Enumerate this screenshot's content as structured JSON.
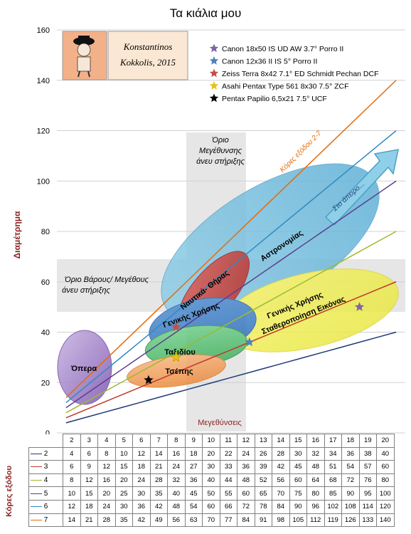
{
  "chart_data": {
    "type": "line",
    "title": "Τα κιάλια μου",
    "xlabel": "Μεγεθύνσεις",
    "ylabel": "Διαμέτρημα",
    "table_ylabel": "Κόρες εξόδου",
    "x": [
      2,
      3,
      4,
      5,
      6,
      7,
      8,
      9,
      10,
      11,
      12,
      13,
      14,
      15,
      16,
      17,
      18,
      19,
      20
    ],
    "xlim": [
      1.5,
      20.5
    ],
    "ylim": [
      0,
      160
    ],
    "yticks": [
      0,
      20,
      40,
      60,
      80,
      100,
      120,
      140,
      160
    ],
    "series": [
      {
        "name": "2",
        "color": "#1f3a7a",
        "values": [
          4,
          6,
          8,
          10,
          12,
          14,
          16,
          18,
          20,
          22,
          24,
          26,
          28,
          30,
          32,
          34,
          36,
          38,
          40
        ]
      },
      {
        "name": "3",
        "color": "#c0392b",
        "values": [
          6,
          9,
          12,
          15,
          18,
          21,
          24,
          27,
          30,
          33,
          36,
          39,
          42,
          45,
          48,
          51,
          54,
          57,
          60
        ]
      },
      {
        "name": "4",
        "color": "#9bbb30",
        "values": [
          8,
          12,
          16,
          20,
          24,
          28,
          32,
          36,
          40,
          44,
          48,
          52,
          56,
          60,
          64,
          68,
          72,
          76,
          80
        ]
      },
      {
        "name": "5",
        "color": "#5b3d8c",
        "values": [
          10,
          15,
          20,
          25,
          30,
          35,
          40,
          45,
          50,
          55,
          60,
          65,
          70,
          75,
          80,
          85,
          90,
          95,
          100
        ]
      },
      {
        "name": "6",
        "color": "#2e8bc0",
        "values": [
          12,
          18,
          24,
          30,
          36,
          42,
          48,
          54,
          60,
          66,
          72,
          78,
          84,
          90,
          96,
          102,
          108,
          114,
          120
        ]
      },
      {
        "name": "7",
        "color": "#e36c0a",
        "values": [
          14,
          21,
          28,
          35,
          42,
          49,
          56,
          63,
          70,
          77,
          84,
          91,
          98,
          105,
          112,
          119,
          126,
          133,
          140
        ]
      }
    ],
    "binoculars": [
      {
        "name": "Canon 18x50 IS UD AW 3.7° Porro II",
        "x": 18,
        "y": 50,
        "color": "#8064a2"
      },
      {
        "name": "Canon 12x36 II IS 5° Porro II",
        "x": 12,
        "y": 36,
        "color": "#4f81bd"
      },
      {
        "name": "Zeiss Terra 8x42 7.1° ED Schmidt Pechan DCF",
        "x": 8,
        "y": 42,
        "color": "#c0504d"
      },
      {
        "name": "Asahi Pentax Type 561 8x30 7.5° ZCF",
        "x": 8,
        "y": 30,
        "color": "#e8c21a"
      },
      {
        "name": "Pentax Papilio 6,5x21 7.5° UCF",
        "x": 6.5,
        "y": 21,
        "color": "#000000"
      }
    ],
    "annotations": {
      "stamp_line1": "Konstantinos",
      "stamp_line2": "Kokkolis, 2015",
      "mag_limit": [
        "Όριο",
        "Μεγέθυνσης",
        "άνευ στήριξης"
      ],
      "weight_limit": [
        "Όριο Βάρους/ Μεγέθους",
        "άνευ στήριξης"
      ],
      "exit_pupil_label": "Κόρες εξόδου 2-7",
      "infinity": "Στο άπειρο...",
      "regions": {
        "opera": "Όπερα",
        "pocket": "Τσέπης",
        "travel": "Ταξιδίου",
        "general_use": "Γενικής Χρήσης",
        "nautical": "Ναυτικά- Θήρας",
        "astronomy": "Αστρονομίας",
        "general_stab_1": "Γενικής Χρήσης",
        "general_stab_2": "Σταθεροποίηση Εικόνας"
      }
    }
  }
}
